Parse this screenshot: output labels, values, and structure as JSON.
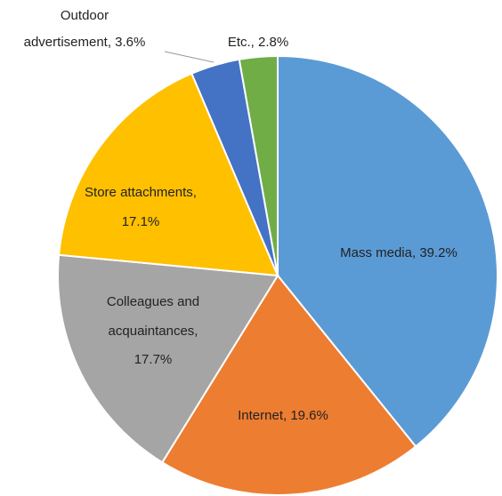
{
  "chart_data": {
    "type": "pie",
    "values": [
      39.2,
      19.6,
      17.7,
      17.1,
      3.6,
      2.8
    ],
    "value_labels": [
      [
        "Mass media, 39.2%"
      ],
      [
        "Internet, 19.6%"
      ],
      [
        "Colleagues  and",
        "acquaintances,",
        "17.7%"
      ],
      [
        "Store attachments,",
        "17.1%"
      ],
      [
        "Outdoor",
        "advertisement, 3.6%"
      ],
      [
        "Etc., 2.8%"
      ]
    ],
    "colors": [
      "#5b9bd5",
      "#ed7d31",
      "#a5a5a5",
      "#ffc000",
      "#4472c4",
      "#70ad47"
    ]
  }
}
